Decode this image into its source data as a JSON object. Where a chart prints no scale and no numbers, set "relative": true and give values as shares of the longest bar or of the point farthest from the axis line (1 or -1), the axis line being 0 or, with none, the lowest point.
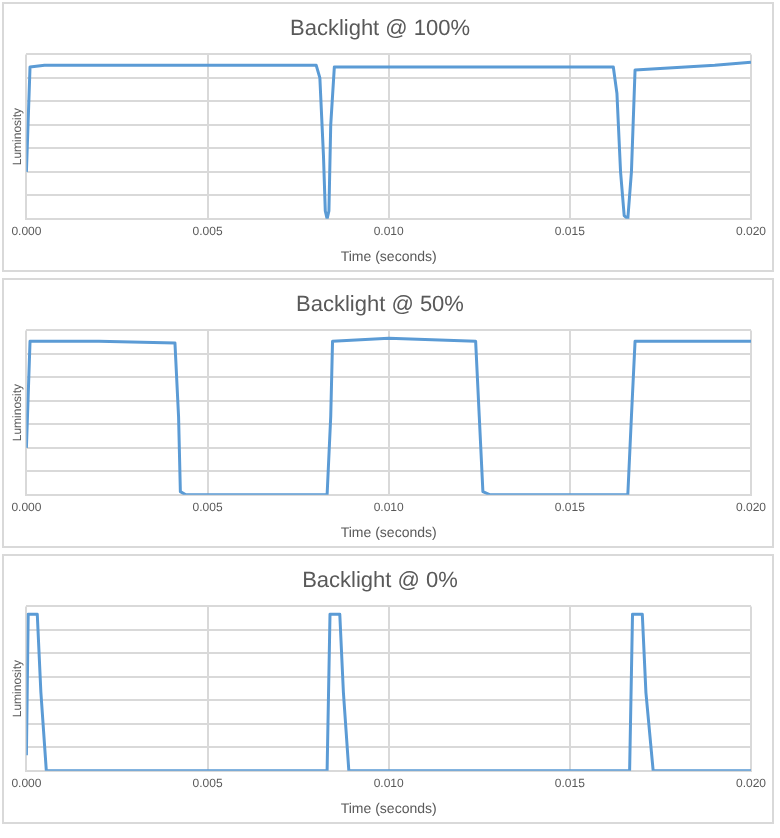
{
  "chart_data": [
    {
      "type": "line",
      "title": "Backlight @ 100%",
      "xlabel": "Time (seconds)",
      "ylabel": "Luminosity",
      "relative": true,
      "grid": true,
      "legend": false,
      "marker": "none",
      "xlim": [
        0,
        0.02
      ],
      "xticks": [
        {
          "value": 0,
          "label": "0.000"
        },
        {
          "value": 0.005,
          "label": "0.005"
        },
        {
          "value": 0.01,
          "label": "0.010"
        },
        {
          "value": 0.015,
          "label": "0.015"
        },
        {
          "value": 0.02,
          "label": "0.020"
        }
      ],
      "series": [
        {
          "color": "#5b9bd5",
          "x": [
            0,
            0.0001,
            0.0005,
            0.004,
            0.008,
            0.0081,
            0.0082,
            0.00825,
            0.0083,
            0.00835,
            0.0084,
            0.0085,
            0.012,
            0.0162,
            0.0163,
            0.0164,
            0.0165,
            0.0166,
            0.0167,
            0.0168,
            0.019,
            0.02
          ],
          "values": [
            0.3,
            0.97,
            0.98,
            0.98,
            0.98,
            0.9,
            0.4,
            0.05,
            0.0,
            0.05,
            0.6,
            0.97,
            0.97,
            0.97,
            0.8,
            0.3,
            0.02,
            0.0,
            0.3,
            0.95,
            0.98,
            1.0
          ]
        }
      ]
    },
    {
      "type": "line",
      "title": "Backlight @ 50%",
      "xlabel": "Time (seconds)",
      "ylabel": "Luminosity",
      "relative": true,
      "grid": true,
      "legend": false,
      "marker": "none",
      "xlim": [
        0,
        0.02
      ],
      "xticks": [
        {
          "value": 0,
          "label": "0.000"
        },
        {
          "value": 0.005,
          "label": "0.005"
        },
        {
          "value": 0.01,
          "label": "0.010"
        },
        {
          "value": 0.015,
          "label": "0.015"
        },
        {
          "value": 0.02,
          "label": "0.020"
        }
      ],
      "series": [
        {
          "color": "#5b9bd5",
          "x": [
            0,
            0.0001,
            0.002,
            0.0041,
            0.0042,
            0.00425,
            0.0044,
            0.006,
            0.0083,
            0.0084,
            0.00845,
            0.01,
            0.0124,
            0.0125,
            0.0126,
            0.0128,
            0.0166,
            0.0167,
            0.0168,
            0.02
          ],
          "values": [
            0.3,
            0.98,
            0.98,
            0.97,
            0.5,
            0.02,
            0.0,
            0.0,
            0.0,
            0.5,
            0.98,
            1.0,
            0.98,
            0.5,
            0.02,
            0.0,
            0.0,
            0.5,
            0.98,
            0.98
          ]
        }
      ]
    },
    {
      "type": "line",
      "title": "Backlight @ 0%",
      "xlabel": "Time (seconds)",
      "ylabel": "Luminosity",
      "relative": true,
      "grid": true,
      "legend": false,
      "marker": "none",
      "xlim": [
        0,
        0.02
      ],
      "xticks": [
        {
          "value": 0,
          "label": "0.000"
        },
        {
          "value": 0.005,
          "label": "0.005"
        },
        {
          "value": 0.01,
          "label": "0.010"
        },
        {
          "value": 0.015,
          "label": "0.015"
        },
        {
          "value": 0.02,
          "label": "0.020"
        }
      ],
      "series": [
        {
          "color": "#5b9bd5",
          "x": [
            0,
            5e-05,
            0.0003,
            0.0004,
            0.00055,
            0.005,
            0.0083,
            0.00838,
            0.00865,
            0.00875,
            0.0089,
            0.013,
            0.01665,
            0.01673,
            0.017,
            0.0171,
            0.0173,
            0.02
          ],
          "values": [
            0.1,
            1.0,
            1.0,
            0.5,
            0.0,
            0.0,
            0.0,
            1.0,
            1.0,
            0.5,
            0.0,
            0.0,
            0.0,
            1.0,
            1.0,
            0.5,
            0.0,
            0.0
          ]
        }
      ]
    }
  ]
}
